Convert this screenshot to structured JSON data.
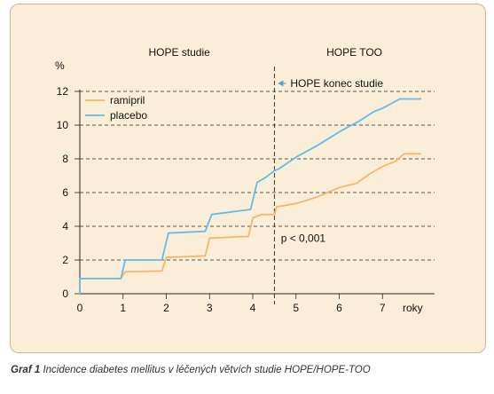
{
  "chart_data": {
    "type": "line",
    "ylabel": "%",
    "xlabel": "roky",
    "xlim": [
      0,
      8
    ],
    "ylim": [
      0,
      12
    ],
    "xticks": [
      1,
      2,
      3,
      4,
      5,
      6,
      7
    ],
    "xtick_zero": "0",
    "yticks": [
      0,
      2,
      4,
      6,
      8,
      10,
      12
    ],
    "grid": "horizontal-dashed",
    "legend_placement": "top-left",
    "section_labels": [
      {
        "text": "HOPE studie",
        "x": 2.3
      },
      {
        "text": "HOPE TOO",
        "x": 6.35
      }
    ],
    "divider": {
      "x": 4.5,
      "label": "HOPE  konec studie"
    },
    "annotation": {
      "text": "p < 0,001",
      "x": 4.65,
      "y": 3.3
    },
    "series": [
      {
        "name": "ramipril",
        "color": "#f6b56e",
        "points": [
          [
            0,
            0
          ],
          [
            0,
            0.9
          ],
          [
            0.95,
            0.9
          ],
          [
            1.05,
            1.3
          ],
          [
            1.9,
            1.35
          ],
          [
            2.0,
            2.15
          ],
          [
            2.9,
            2.25
          ],
          [
            3.0,
            3.3
          ],
          [
            3.9,
            3.4
          ],
          [
            4.0,
            4.5
          ],
          [
            4.2,
            4.7
          ],
          [
            4.5,
            4.7
          ],
          [
            4.55,
            5.15
          ],
          [
            5.0,
            5.35
          ],
          [
            5.5,
            5.75
          ],
          [
            6.0,
            6.3
          ],
          [
            6.4,
            6.55
          ],
          [
            6.7,
            7.1
          ],
          [
            7.0,
            7.55
          ],
          [
            7.3,
            7.85
          ],
          [
            7.5,
            8.3
          ],
          [
            7.9,
            8.3
          ]
        ]
      },
      {
        "name": "placebo",
        "color": "#63bce8",
        "points": [
          [
            0,
            0
          ],
          [
            0,
            0.9
          ],
          [
            0.95,
            0.9
          ],
          [
            1.05,
            2.0
          ],
          [
            1.9,
            2.0
          ],
          [
            2.05,
            3.6
          ],
          [
            2.9,
            3.7
          ],
          [
            3.05,
            4.7
          ],
          [
            3.95,
            5.0
          ],
          [
            4.1,
            6.6
          ],
          [
            4.3,
            6.9
          ],
          [
            4.5,
            7.3
          ],
          [
            4.6,
            7.4
          ],
          [
            5.0,
            8.1
          ],
          [
            5.5,
            8.8
          ],
          [
            6.0,
            9.6
          ],
          [
            6.5,
            10.3
          ],
          [
            6.8,
            10.8
          ],
          [
            7.0,
            11.0
          ],
          [
            7.4,
            11.55
          ],
          [
            7.9,
            11.55
          ]
        ]
      }
    ]
  },
  "caption": {
    "label": "Graf 1",
    "text": "Incidence diabetes mellitus v léčených větvích studie HOPE/HOPE-TOO"
  }
}
